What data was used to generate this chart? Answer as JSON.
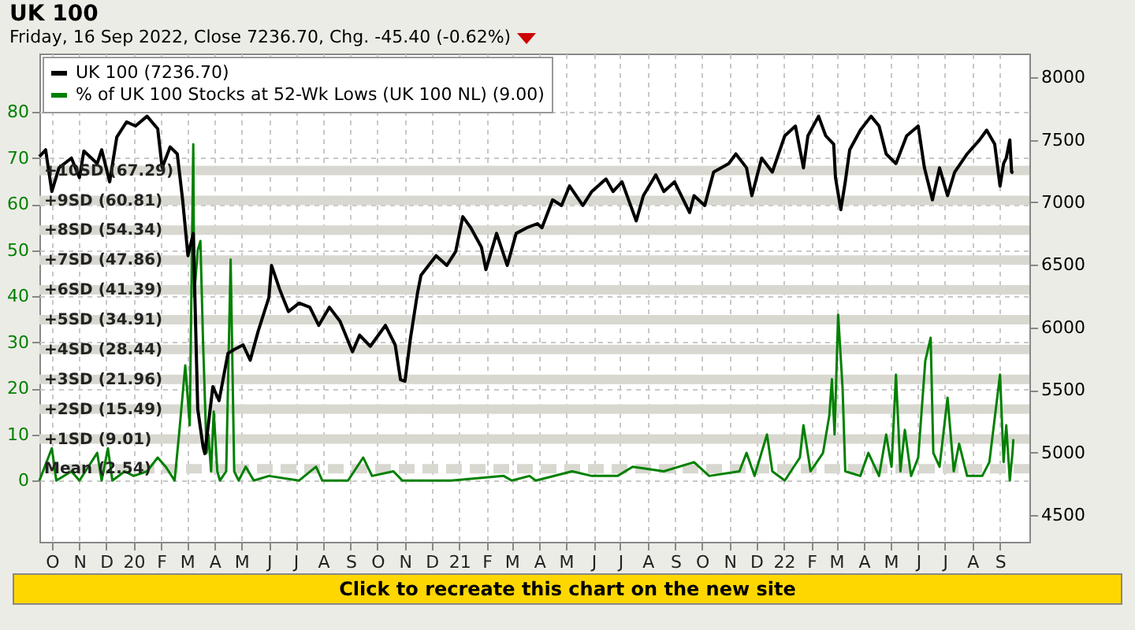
{
  "chart_data": {
    "type": "line",
    "title": "UK 100",
    "subtitle": "Friday, 16 Sep 2022, Close 7236.70, Chg. -45.40 (-0.62%)",
    "annotations": [
      "Click to recreate this chart on the new site"
    ],
    "xlim": [
      "2019-09-17",
      "2022-10-04"
    ],
    "xticks": [
      {
        "value": "2019-10-01",
        "label": "O"
      },
      {
        "value": "2019-11-01",
        "label": "N"
      },
      {
        "value": "2019-12-01",
        "label": "D"
      },
      {
        "value": "2020-01-01",
        "label": "20"
      },
      {
        "value": "2020-02-01",
        "label": "F"
      },
      {
        "value": "2020-03-01",
        "label": "M"
      },
      {
        "value": "2020-04-01",
        "label": "A"
      },
      {
        "value": "2020-05-01",
        "label": "M"
      },
      {
        "value": "2020-06-01",
        "label": "J"
      },
      {
        "value": "2020-07-01",
        "label": "J"
      },
      {
        "value": "2020-08-01",
        "label": "A"
      },
      {
        "value": "2020-09-01",
        "label": "S"
      },
      {
        "value": "2020-10-01",
        "label": "O"
      },
      {
        "value": "2020-11-01",
        "label": "N"
      },
      {
        "value": "2020-12-01",
        "label": "D"
      },
      {
        "value": "2021-01-01",
        "label": "21"
      },
      {
        "value": "2021-02-01",
        "label": "F"
      },
      {
        "value": "2021-03-01",
        "label": "M"
      },
      {
        "value": "2021-04-01",
        "label": "A"
      },
      {
        "value": "2021-05-01",
        "label": "M"
      },
      {
        "value": "2021-06-01",
        "label": "J"
      },
      {
        "value": "2021-07-01",
        "label": "J"
      },
      {
        "value": "2021-08-01",
        "label": "A"
      },
      {
        "value": "2021-09-01",
        "label": "S"
      },
      {
        "value": "2021-10-01",
        "label": "O"
      },
      {
        "value": "2021-11-01",
        "label": "N"
      },
      {
        "value": "2021-12-01",
        "label": "D"
      },
      {
        "value": "2022-01-01",
        "label": "22"
      },
      {
        "value": "2022-02-01",
        "label": "F"
      },
      {
        "value": "2022-03-01",
        "label": "M"
      },
      {
        "value": "2022-04-01",
        "label": "A"
      },
      {
        "value": "2022-05-01",
        "label": "M"
      },
      {
        "value": "2022-06-01",
        "label": "J"
      },
      {
        "value": "2022-07-01",
        "label": "J"
      },
      {
        "value": "2022-08-01",
        "label": "A"
      },
      {
        "value": "2022-09-01",
        "label": "S"
      }
    ],
    "ylim": [
      -13.3,
      92.7
    ],
    "yticks": [
      0,
      10,
      20,
      30,
      40,
      50,
      60,
      70,
      80
    ],
    "y2lim": [
      4288,
      8189
    ],
    "y2ticks": [
      4500,
      5000,
      5500,
      6000,
      6500,
      7000,
      7500,
      8000
    ],
    "grid": true,
    "legend": "top left",
    "ref_lines": [
      {
        "axis": "y",
        "value": 67.29,
        "label": "+10SD (67.29)",
        "color": "#d8d8d0"
      },
      {
        "axis": "y",
        "value": 60.81,
        "label": "+9SD (60.81)",
        "color": "#d8d8d0"
      },
      {
        "axis": "y",
        "value": 54.34,
        "label": "+8SD (54.34)",
        "color": "#d8d8d0"
      },
      {
        "axis": "y",
        "value": 47.86,
        "label": "+7SD (47.86)",
        "color": "#d8d8d0"
      },
      {
        "axis": "y",
        "value": 41.39,
        "label": "+6SD (41.39)",
        "color": "#d8d8d0"
      },
      {
        "axis": "y",
        "value": 34.91,
        "label": "+5SD (34.91)",
        "color": "#d8d8d0"
      },
      {
        "axis": "y",
        "value": 28.44,
        "label": "+4SD (28.44)",
        "color": "#d8d8d0"
      },
      {
        "axis": "y",
        "value": 21.96,
        "label": "+3SD (21.96)",
        "color": "#d8d8d0"
      },
      {
        "axis": "y",
        "value": 15.49,
        "label": "+2SD (15.49)",
        "color": "#d8d8d0"
      },
      {
        "axis": "y",
        "value": 9.01,
        "label": "+1SD (9.01)",
        "color": "#d8d8d0"
      },
      {
        "axis": "y",
        "value": 2.54,
        "label": "Mean (2.54)",
        "color": "#d8d8d0",
        "line_style": "dashed"
      }
    ],
    "series": [
      {
        "name": "UK 100 (7236.70)",
        "color": "#000000",
        "axis": "y2",
        "x": [
          "2019-09-17",
          "2019-09-24",
          "2019-09-27",
          "2019-10-01",
          "2019-10-09",
          "2019-10-23",
          "2019-11-01",
          "2019-11-06",
          "2019-11-21",
          "2019-11-26",
          "2019-12-05",
          "2019-12-13",
          "2019-12-24",
          "2020-01-03",
          "2020-01-16",
          "2020-01-28",
          "2020-02-02",
          "2020-02-11",
          "2020-02-19",
          "2020-02-25",
          "2020-03-02",
          "2020-03-08",
          "2020-03-13",
          "2020-03-19",
          "2020-03-21",
          "2020-03-30",
          "2020-04-06",
          "2020-04-16",
          "2020-04-24",
          "2020-05-03",
          "2020-05-11",
          "2020-05-20",
          "2020-06-01",
          "2020-06-04",
          "2020-06-13",
          "2020-06-23",
          "2020-07-05",
          "2020-07-17",
          "2020-07-27",
          "2020-08-08",
          "2020-08-20",
          "2020-09-03",
          "2020-09-11",
          "2020-09-23",
          "2020-10-10",
          "2020-10-21",
          "2020-10-27",
          "2020-11-01",
          "2020-11-07",
          "2020-11-15",
          "2020-11-19",
          "2020-12-06",
          "2020-12-18",
          "2020-12-28",
          "2021-01-05",
          "2021-01-14",
          "2021-01-26",
          "2021-01-31",
          "2021-02-12",
          "2021-02-24",
          "2021-03-06",
          "2021-03-18",
          "2021-03-30",
          "2021-04-04",
          "2021-04-16",
          "2021-04-26",
          "2021-05-05",
          "2021-05-20",
          "2021-05-30",
          "2021-06-15",
          "2021-06-23",
          "2021-07-03",
          "2021-07-19",
          "2021-07-27",
          "2021-08-10",
          "2021-08-19",
          "2021-08-31",
          "2021-09-17",
          "2021-09-22",
          "2021-10-04",
          "2021-10-14",
          "2021-10-31",
          "2021-11-08",
          "2021-11-20",
          "2021-11-26",
          "2021-12-07",
          "2021-12-19",
          "2022-01-02",
          "2022-01-14",
          "2022-01-23",
          "2022-01-28",
          "2022-02-09",
          "2022-02-17",
          "2022-02-26",
          "2022-02-28",
          "2022-03-06",
          "2022-03-11",
          "2022-03-16",
          "2022-03-28",
          "2022-04-09",
          "2022-04-18",
          "2022-04-26",
          "2022-05-07",
          "2022-05-19",
          "2022-06-01",
          "2022-06-08",
          "2022-06-17",
          "2022-06-25",
          "2022-07-04",
          "2022-07-12",
          "2022-07-26",
          "2022-08-09",
          "2022-08-17",
          "2022-08-26",
          "2022-09-01",
          "2022-09-05",
          "2022-09-08",
          "2022-09-12",
          "2022-09-14",
          "2022-09-16"
        ],
        "values": [
          7365,
          7420,
          7276,
          7087,
          7276,
          7354,
          7198,
          7410,
          7310,
          7420,
          7164,
          7521,
          7643,
          7610,
          7688,
          7588,
          7276,
          7443,
          7387,
          7020,
          6574,
          6752,
          5349,
          5048,
          4992,
          5527,
          5416,
          5794,
          5828,
          5861,
          5739,
          5972,
          6240,
          6496,
          6307,
          6128,
          6195,
          6162,
          6017,
          6162,
          6050,
          5806,
          5939,
          5850,
          6017,
          5861,
          5583,
          5571,
          5906,
          6273,
          6418,
          6574,
          6496,
          6607,
          6886,
          6797,
          6641,
          6463,
          6752,
          6496,
          6752,
          6797,
          6830,
          6797,
          7020,
          6975,
          7131,
          6975,
          7087,
          7187,
          7087,
          7164,
          6852,
          7053,
          7220,
          7087,
          7164,
          6919,
          7053,
          6975,
          7242,
          7310,
          7387,
          7276,
          7053,
          7354,
          7242,
          7532,
          7610,
          7276,
          7532,
          7688,
          7532,
          7465,
          7198,
          6942,
          7164,
          7420,
          7577,
          7688,
          7610,
          7387,
          7310,
          7532,
          7610,
          7276,
          7020,
          7276,
          7053,
          7242,
          7387,
          7499,
          7577,
          7465,
          7131,
          7310,
          7354,
          7499,
          7242,
          7236.7
        ]
      },
      {
        "name": "% of UK 100 Stocks at 52-Wk Lows (UK 100 NL) (9.00)",
        "color": "#008000",
        "axis": "y",
        "x": [
          "2019-09-17",
          "2019-10-01",
          "2019-10-06",
          "2019-10-23",
          "2019-11-01",
          "2019-11-21",
          "2019-11-26",
          "2019-12-03",
          "2019-12-08",
          "2019-12-22",
          "2020-01-01",
          "2020-01-16",
          "2020-01-28",
          "2020-02-06",
          "2020-02-16",
          "2020-02-21",
          "2020-02-28",
          "2020-03-04",
          "2020-03-08",
          "2020-03-09",
          "2020-03-13",
          "2020-03-16",
          "2020-03-19",
          "2020-03-23",
          "2020-03-25",
          "2020-03-28",
          "2020-03-31",
          "2020-04-04",
          "2020-04-07",
          "2020-04-14",
          "2020-04-19",
          "2020-04-23",
          "2020-04-28",
          "2020-05-06",
          "2020-05-15",
          "2020-06-01",
          "2020-07-05",
          "2020-07-24",
          "2020-07-31",
          "2020-08-29",
          "2020-09-15",
          "2020-09-25",
          "2020-10-19",
          "2020-10-29",
          "2020-12-23",
          "2021-02-20",
          "2021-03-01",
          "2021-03-21",
          "2021-03-28",
          "2021-05-08",
          "2021-05-30",
          "2021-06-28",
          "2021-07-15",
          "2021-08-19",
          "2021-09-22",
          "2021-10-09",
          "2021-11-12",
          "2021-11-20",
          "2021-11-29",
          "2021-12-13",
          "2021-12-19",
          "2022-01-02",
          "2022-01-19",
          "2022-01-23",
          "2022-01-31",
          "2022-02-14",
          "2022-02-21",
          "2022-02-24",
          "2022-02-27",
          "2022-03-03",
          "2022-03-08",
          "2022-03-11",
          "2022-03-28",
          "2022-04-06",
          "2022-04-18",
          "2022-04-26",
          "2022-05-02",
          "2022-05-07",
          "2022-05-12",
          "2022-05-17",
          "2022-05-24",
          "2022-06-01",
          "2022-06-09",
          "2022-06-15",
          "2022-06-18",
          "2022-06-25",
          "2022-07-04",
          "2022-07-11",
          "2022-07-17",
          "2022-07-26",
          "2022-08-12",
          "2022-08-20",
          "2022-09-01",
          "2022-09-05",
          "2022-09-08",
          "2022-09-12",
          "2022-09-15",
          "2022-09-16"
        ],
        "values": [
          0,
          7,
          0,
          2,
          0,
          6,
          0,
          7,
          0,
          2,
          1,
          2,
          5,
          3,
          0,
          10,
          25,
          12,
          73,
          40,
          50,
          52,
          30,
          6,
          10,
          2,
          15,
          2,
          0,
          2,
          48,
          2,
          0,
          3,
          0,
          1,
          0,
          3,
          0,
          0,
          5,
          1,
          2,
          0,
          0,
          1,
          0,
          1,
          0,
          2,
          1,
          1,
          3,
          2,
          4,
          1,
          2,
          6,
          1,
          10,
          2,
          0,
          5,
          12,
          2,
          6,
          14,
          22,
          10,
          36,
          20,
          2,
          1,
          6,
          1,
          10,
          3,
          23,
          2,
          11,
          1,
          5,
          26,
          31,
          6,
          3,
          18,
          2,
          8,
          1,
          1,
          4,
          23,
          4,
          12,
          0,
          6,
          9
        ]
      }
    ]
  }
}
